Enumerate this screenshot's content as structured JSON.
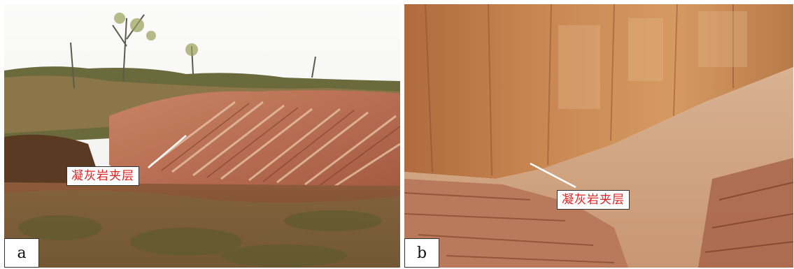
{
  "panels": [
    {
      "letter": "a",
      "callout": "凝灰岩夹层"
    },
    {
      "letter": "b",
      "callout": "凝灰岩夹层"
    }
  ],
  "colors": {
    "callout_text": "#e02020",
    "rock_light": "#d9a07a",
    "rock_dark": "#a0522d",
    "sky": "#f6f6f4",
    "grass": "#7d7a45"
  }
}
